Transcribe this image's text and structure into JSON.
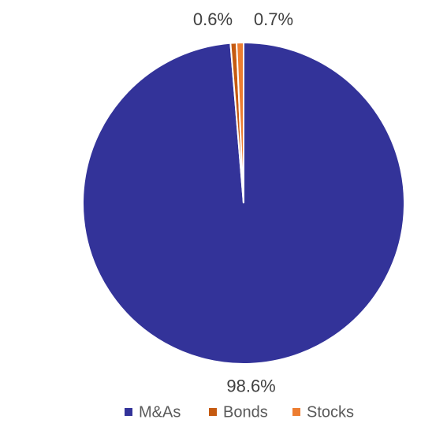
{
  "chart_data": {
    "type": "pie",
    "categories": [
      "M&As",
      "Bonds",
      "Stocks"
    ],
    "values": [
      98.6,
      0.6,
      0.7
    ],
    "value_labels": [
      "98.6%",
      "0.6%",
      "0.7%"
    ],
    "colors": [
      "#333399",
      "#c55a11",
      "#ed7d31"
    ],
    "legend": "bottom"
  }
}
